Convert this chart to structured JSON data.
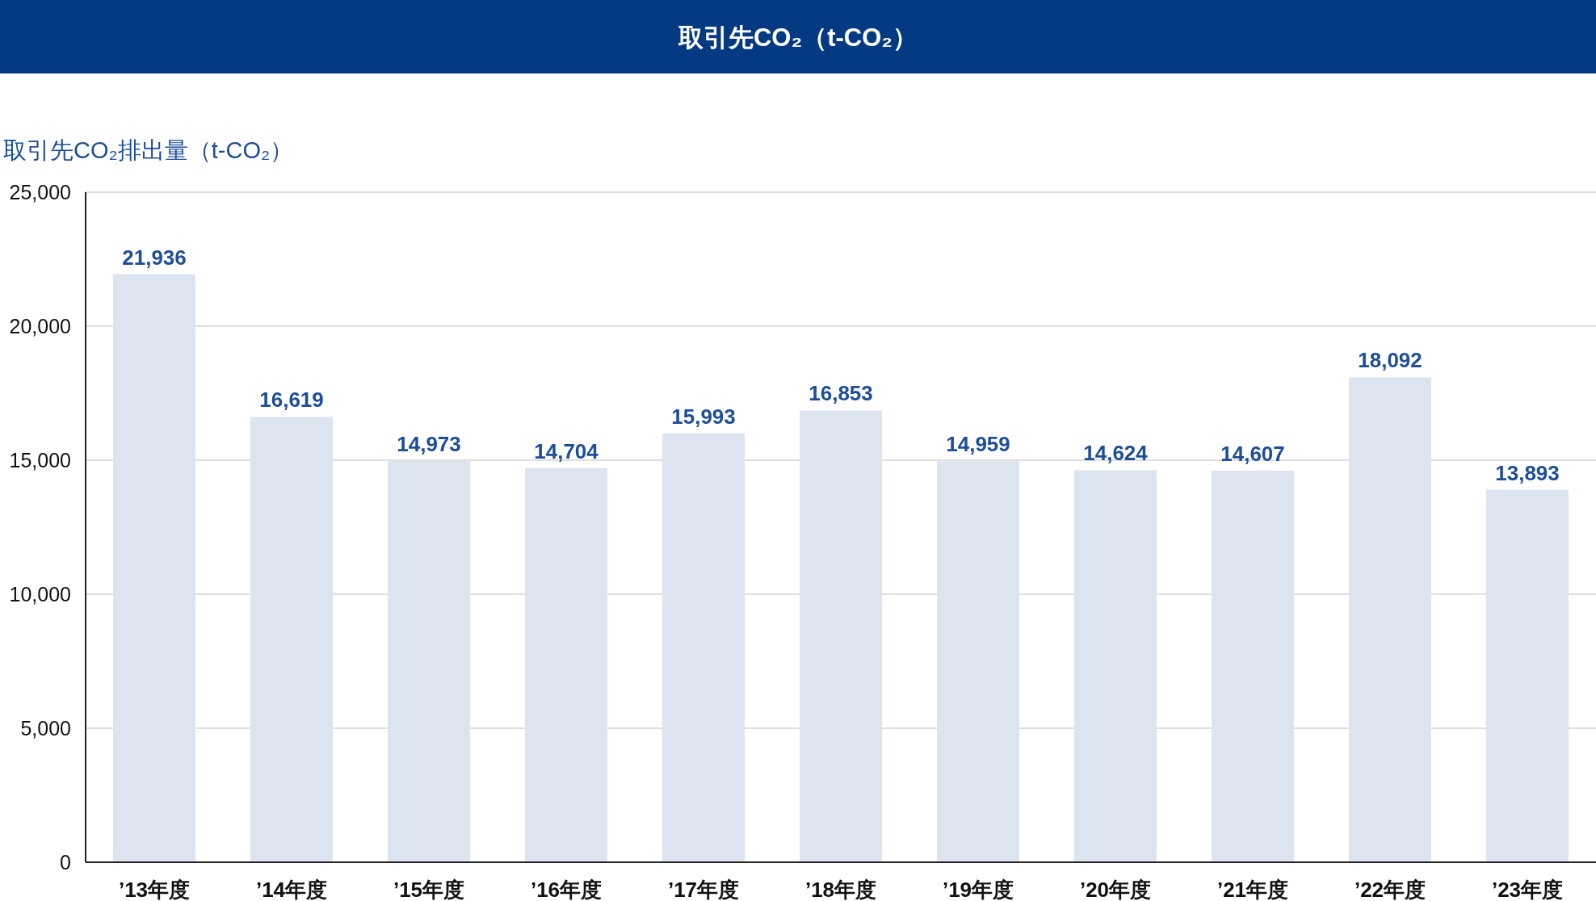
{
  "chart_data": {
    "type": "bar",
    "title": "取引先CO₂（t-CO₂）",
    "ylabel": "取引先CO₂排出量（t-CO₂）",
    "categories": [
      "’13年度",
      "’14年度",
      "’15年度",
      "’16年度",
      "’17年度",
      "’18年度",
      "’19年度",
      "’20年度",
      "’21年度",
      "’22年度",
      "’23年度"
    ],
    "values": [
      21936,
      16619,
      14973,
      14704,
      15993,
      16853,
      14959,
      14624,
      14607,
      18092,
      13893
    ],
    "color": "#dce4f0",
    "ylim": [
      0,
      25000
    ],
    "yticks": [
      {
        "value": 0,
        "label": "0"
      },
      {
        "value": 5000,
        "label": "5,000"
      },
      {
        "value": 10000,
        "label": "10,000"
      },
      {
        "value": 15000,
        "label": "15,000"
      },
      {
        "value": 20000,
        "label": "20,000"
      },
      {
        "value": 25000,
        "label": "25,000"
      }
    ],
    "grid": "y",
    "value_labels": [
      "21,936",
      "16,619",
      "14,973",
      "14,704",
      "15,993",
      "16,853",
      "14,959",
      "14,624",
      "14,607",
      "18,092",
      "13,893"
    ]
  }
}
